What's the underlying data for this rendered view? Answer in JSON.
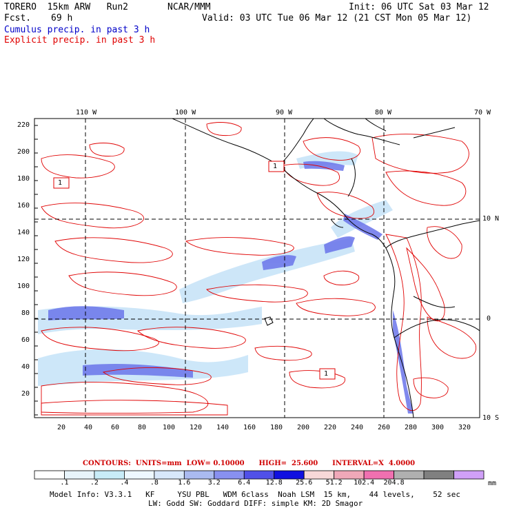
{
  "header": {
    "model": "TORERO  15km ARW   Run2",
    "org": "NCAR/MMM",
    "init": "Init: 06 UTC Sat 03 Mar 12",
    "fcst_label": "Fcst.",
    "fcst_hours": "69 h",
    "valid": "Valid: 03 UTC Tue 06 Mar 12 (21 CST Mon 05 Mar 12)",
    "field1": "Cumulus precip. in past 3 h",
    "field2": "Explicit precip. in past 3 h"
  },
  "axes": {
    "top_ticks": [
      "110 W",
      "100 W",
      "90 W",
      "80 W",
      "70 W"
    ],
    "right_ticks": [
      "10 N",
      "0",
      "10 S"
    ],
    "left_ticks": [
      "220",
      "200",
      "180",
      "160",
      "140",
      "120",
      "100",
      "80",
      "60",
      "40",
      "20"
    ],
    "bottom_ticks": [
      "20",
      "40",
      "60",
      "80",
      "100",
      "120",
      "140",
      "160",
      "180",
      "200",
      "220",
      "240",
      "260",
      "280",
      "300",
      "320"
    ]
  },
  "map_labels": [
    "1",
    "1",
    "1"
  ],
  "contours_text": "CONTOURS:  UNITS=mm  LOW= 0.10000      HIGH=  25.600      INTERVAL=X  4.0000",
  "colorbar": {
    "labels": [
      ".1",
      ".2",
      ".4",
      ".8",
      "1.6",
      "3.2",
      "6.4",
      "12.8",
      "25.6",
      "51.2",
      "102.4",
      "204.8"
    ],
    "unit": "mm",
    "colors": [
      "#ffffff",
      "#e8f4fb",
      "#c8ecf8",
      "#eef8ff",
      "#d8e8fa",
      "#aabaf0",
      "#8890f0",
      "#5050e8",
      "#1010e0",
      "#f8d8d8",
      "#f0a8b8",
      "#f070b0",
      "#b0b0b0",
      "#808080",
      "#d0a0f8"
    ]
  },
  "footer": {
    "line1": "Model Info: V3.3.1   KF     YSU PBL   WDM 6class  Noah LSM  15 km,    44 levels,    52 sec",
    "line2": "LW: Godd SW: Goddard DIFF: simple KM: 2D Smagor"
  }
}
